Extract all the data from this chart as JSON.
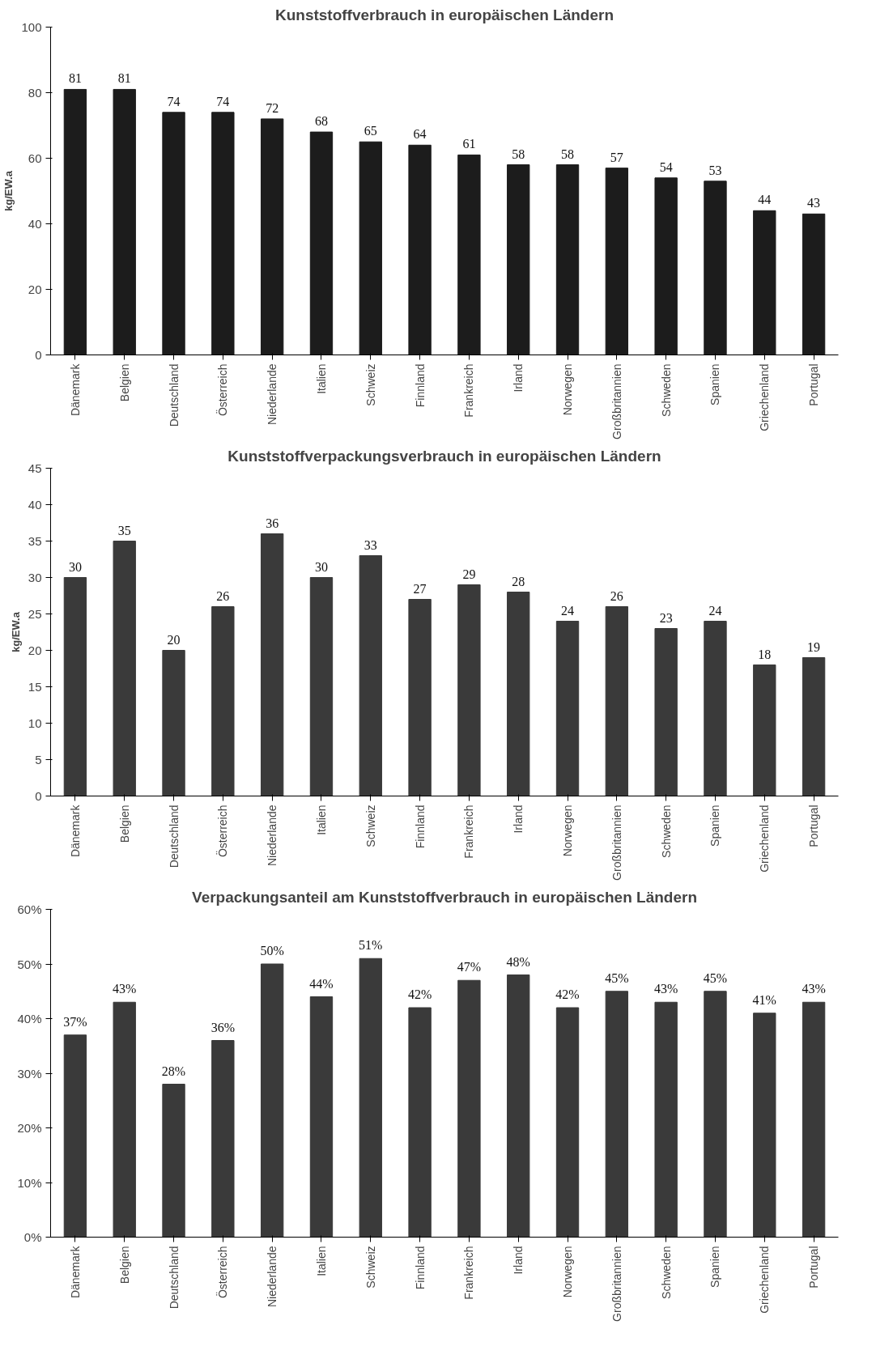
{
  "chart_data": [
    {
      "type": "bar",
      "title": "Kunststoffverbrauch in europäischen Ländern",
      "ylabel": "kg/EW.a",
      "categories": [
        "Dänemark",
        "Belgien",
        "Deutschland",
        "Österreich",
        "Niederlande",
        "Italien",
        "Schweiz",
        "Finnland",
        "Frankreich",
        "Irland",
        "Norwegen",
        "Großbritannien",
        "Schweden",
        "Spanien",
        "Griechenland",
        "Portugal"
      ],
      "values": [
        81,
        81,
        74,
        74,
        72,
        68,
        65,
        64,
        61,
        58,
        58,
        57,
        54,
        53,
        44,
        43
      ],
      "color": "#1c1c1c",
      "ylim": [
        0,
        100
      ],
      "yticks": [
        0,
        20,
        40,
        60,
        80,
        100
      ],
      "grid": false,
      "data_labels": true
    },
    {
      "type": "bar",
      "title": "Kunststoffverpackungsverbrauch in europäischen Ländern",
      "ylabel": "kg/EW.a",
      "categories": [
        "Dänemark",
        "Belgien",
        "Deutschland",
        "Österreich",
        "Niederlande",
        "Italien",
        "Schweiz",
        "Finnland",
        "Frankreich",
        "Irland",
        "Norwegen",
        "Großbritannien",
        "Schweden",
        "Spanien",
        "Griechenland",
        "Portugal"
      ],
      "values": [
        30,
        35,
        20,
        26,
        36,
        30,
        33,
        27,
        29,
        28,
        24,
        26,
        23,
        24,
        18,
        19
      ],
      "color": "#3a3a3a",
      "ylim": [
        0,
        45
      ],
      "yticks": [
        0,
        5,
        10,
        15,
        20,
        25,
        30,
        35,
        40,
        45
      ],
      "grid": false,
      "data_labels": true
    },
    {
      "type": "bar",
      "title": "Verpackungsanteil am Kunststoffverbrauch in europäischen Ländern",
      "categories": [
        "Dänemark",
        "Belgien",
        "Deutschland",
        "Österreich",
        "Niederlande",
        "Italien",
        "Schweiz",
        "Finnland",
        "Frankreich",
        "Irland",
        "Norwegen",
        "Großbritannien",
        "Schweden",
        "Spanien",
        "Griechenland",
        "Portugal"
      ],
      "values": [
        37,
        43,
        28,
        36,
        50,
        44,
        51,
        42,
        47,
        48,
        42,
        45,
        43,
        45,
        41,
        43
      ],
      "color": "#3a3a3a",
      "value_labels": [
        "37%",
        "43%",
        "28%",
        "36%",
        "50%",
        "44%",
        "51%",
        "42%",
        "47%",
        "48%",
        "42%",
        "45%",
        "43%",
        "45%",
        "41%",
        "43%"
      ],
      "ylim": [
        0,
        60
      ],
      "yticks": [
        {
          "value": 0,
          "label": "0%"
        },
        {
          "value": 10,
          "label": "10%"
        },
        {
          "value": 20,
          "label": "20%"
        },
        {
          "value": 30,
          "label": "30%"
        },
        {
          "value": 40,
          "label": "40%"
        },
        {
          "value": 50,
          "label": "50%"
        },
        {
          "value": 60,
          "label": "60%"
        }
      ],
      "grid": false
    }
  ]
}
